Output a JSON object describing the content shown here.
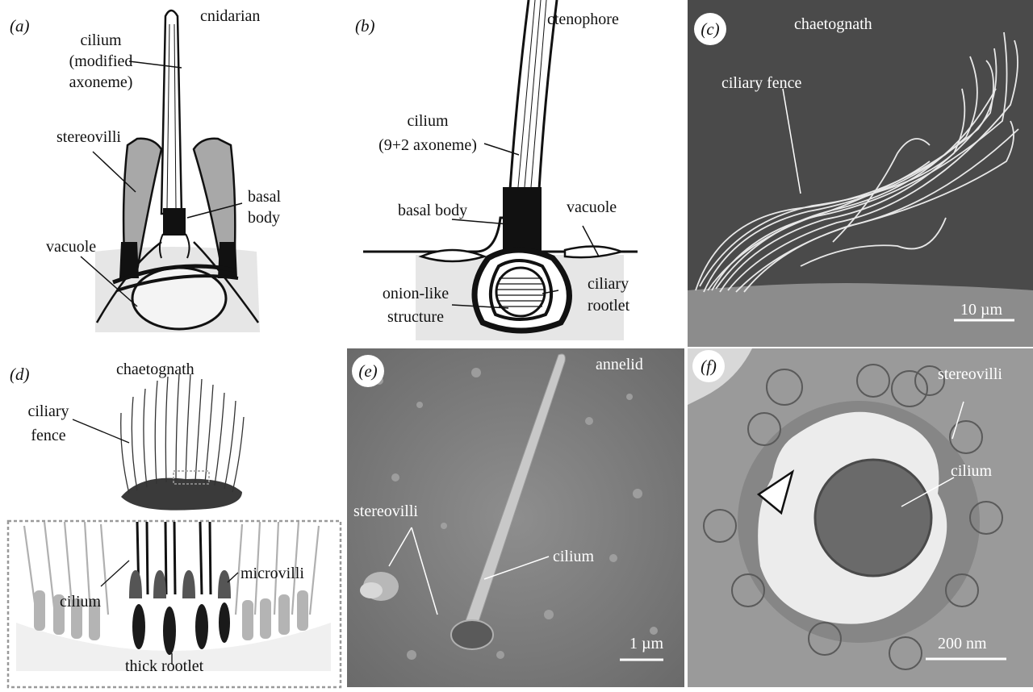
{
  "panels": {
    "a": {
      "label": "(a)",
      "title": "cnidarian",
      "cilium": [
        "cilium",
        "(modified",
        "axoneme)"
      ],
      "stereovilli": "stereovilli",
      "basal_body": [
        "basal",
        "body"
      ],
      "vacuole": "vacuole"
    },
    "b": {
      "label": "(b)",
      "title": "ctenophore",
      "cilium": [
        "cilium",
        "(9+2 axoneme)"
      ],
      "basal_body": "basal body",
      "vacuole": "vacuole",
      "onion": [
        "onion-like",
        "structure"
      ],
      "rootlet": [
        "ciliary",
        "rootlet"
      ]
    },
    "c": {
      "label": "(c)",
      "title": "chaetognath",
      "fence": "ciliary fence",
      "scale": "10 µm"
    },
    "d": {
      "label": "(d)",
      "title": "chaetognath",
      "fence": [
        "ciliary",
        "fence"
      ],
      "cilium": "cilium",
      "microvilli": "microvilli",
      "rootlet": "thick rootlet"
    },
    "e": {
      "label": "(e)",
      "title": "annelid",
      "stereovilli": "stereovilli",
      "cilium": "cilium",
      "scale": "1 µm"
    },
    "f": {
      "label": "(f)",
      "stereovilli": "stereovilli",
      "cilium": "cilium",
      "scale": "200 nm"
    }
  },
  "colors": {
    "sem_dark": "#4a4a4a",
    "sem_mid": "#8c8c8c",
    "tem_bg": "#9a9a9a",
    "drawing_fill": "#e6e6e6"
  }
}
